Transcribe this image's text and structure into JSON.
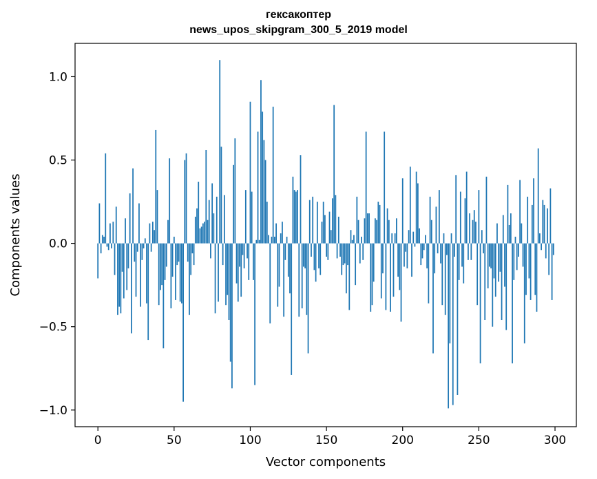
{
  "chart_data": {
    "type": "bar",
    "title": [
      "гексакоптер",
      "news_upos_skipgram_300_5_2019 model"
    ],
    "xlabel": "Vector components",
    "ylabel": "Components values",
    "xlim": [
      -15,
      314
    ],
    "ylim": [
      -1.1,
      1.2
    ],
    "xticks": [
      0,
      50,
      100,
      150,
      200,
      250,
      300
    ],
    "xtick_labels": [
      "0",
      "50",
      "100",
      "150",
      "200",
      "250",
      "300"
    ],
    "yticks": [
      -1.0,
      -0.5,
      0.0,
      0.5,
      1.0
    ],
    "ytick_labels": [
      "−1.0",
      "−0.5",
      "0.0",
      "0.5",
      "1.0"
    ],
    "grid": false,
    "bar_color": "#1f77b4",
    "x": "0..299 (one bar per vector component)",
    "values": [
      -0.21,
      0.24,
      -0.06,
      0.05,
      0.04,
      0.54,
      -0.02,
      -0.04,
      0.12,
      -0.03,
      0.13,
      -0.19,
      0.22,
      -0.43,
      -0.38,
      -0.42,
      -0.17,
      -0.33,
      0.15,
      -0.28,
      -0.15,
      0.3,
      -0.54,
      0.45,
      -0.11,
      -0.32,
      -0.05,
      0.24,
      -0.38,
      -0.1,
      -0.03,
      0.03,
      -0.36,
      -0.58,
      0.12,
      -0.05,
      0.13,
      0.08,
      0.68,
      0.32,
      -0.37,
      -0.28,
      -0.25,
      -0.63,
      -0.22,
      -0.14,
      0.14,
      0.51,
      -0.39,
      -0.2,
      0.04,
      -0.34,
      -0.13,
      -0.11,
      -0.35,
      -0.36,
      -0.95,
      0.5,
      0.54,
      -0.11,
      -0.43,
      -0.19,
      -0.06,
      -0.13,
      0.16,
      0.21,
      0.37,
      0.09,
      0.1,
      0.12,
      0.13,
      0.56,
      0.14,
      0.26,
      -0.09,
      0.36,
      0.18,
      -0.42,
      0.28,
      -0.35,
      1.1,
      0.58,
      -0.13,
      0.29,
      -0.37,
      -0.31,
      -0.46,
      -0.71,
      -0.87,
      0.47,
      0.63,
      -0.24,
      -0.35,
      -0.14,
      -0.32,
      -0.07,
      -0.15,
      0.32,
      -0.09,
      -0.22,
      0.85,
      0.31,
      -0.22,
      -0.85,
      0.02,
      0.67,
      0.02,
      0.98,
      0.79,
      0.62,
      0.5,
      0.25,
      0.05,
      -0.48,
      0.04,
      0.82,
      0.04,
      0.12,
      -0.38,
      -0.26,
      0.06,
      0.13,
      -0.44,
      -0.1,
      0.04,
      -0.2,
      -0.3,
      -0.79,
      0.4,
      0.32,
      0.31,
      0.32,
      -0.44,
      0.53,
      -0.39,
      -0.14,
      -0.15,
      -0.43,
      -0.66,
      0.26,
      -0.08,
      0.28,
      -0.16,
      -0.23,
      0.25,
      -0.15,
      -0.19,
      0.13,
      0.25,
      0.17,
      -0.08,
      -0.1,
      0.19,
      0.08,
      0.27,
      0.83,
      0.29,
      -0.09,
      0.16,
      -0.08,
      -0.19,
      -0.13,
      -0.12,
      -0.3,
      -0.13,
      -0.4,
      0.08,
      0.02,
      0.05,
      -0.25,
      0.28,
      0.14,
      -0.12,
      0.04,
      -0.1,
      0.15,
      0.67,
      0.18,
      0.18,
      -0.41,
      -0.37,
      -0.23,
      0.15,
      0.14,
      0.25,
      0.23,
      -0.33,
      -0.18,
      0.67,
      -0.4,
      0.21,
      0.14,
      -0.41,
      0.06,
      -0.32,
      0.06,
      0.15,
      -0.2,
      -0.28,
      -0.47,
      0.39,
      -0.14,
      -0.05,
      -0.15,
      0.08,
      0.46,
      -0.2,
      0.07,
      -0.02,
      0.43,
      0.36,
      0.09,
      -0.13,
      -0.09,
      -0.04,
      0.05,
      -0.15,
      -0.36,
      0.28,
      0.14,
      -0.66,
      -0.18,
      0.22,
      -0.06,
      0.32,
      -0.12,
      -0.37,
      0.06,
      -0.43,
      -0.07,
      -0.99,
      -0.6,
      0.06,
      -0.97,
      -0.08,
      0.41,
      -0.91,
      -0.22,
      0.31,
      -0.14,
      -0.24,
      0.27,
      0.43,
      -0.1,
      0.18,
      -0.1,
      0.14,
      0.2,
      0.13,
      -0.37,
      0.32,
      -0.72,
      0.08,
      -0.06,
      -0.46,
      0.4,
      -0.27,
      -0.14,
      -0.15,
      -0.5,
      -0.21,
      -0.32,
      0.12,
      -0.23,
      -0.17,
      -0.46,
      0.17,
      -0.26,
      -0.52,
      0.35,
      0.11,
      0.18,
      -0.72,
      -0.22,
      0.04,
      -0.16,
      -0.08,
      0.38,
      0.12,
      -0.14,
      -0.6,
      -0.31,
      0.28,
      -0.21,
      -0.34,
      0.23,
      0.39,
      -0.31,
      -0.41,
      0.57,
      0.06,
      -0.04,
      0.26,
      0.23,
      -0.09,
      0.21,
      -0.19,
      0.33,
      -0.34,
      -0.07
    ]
  }
}
